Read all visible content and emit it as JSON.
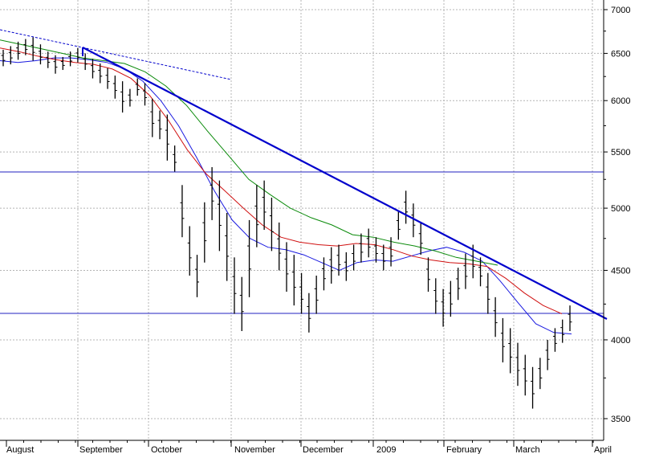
{
  "chart_data": {
    "type": "ohlc",
    "x_labels": [
      "August",
      "September",
      "October",
      "November",
      "December",
      "2009",
      "February",
      "March",
      "April"
    ],
    "y_ticks": [
      3500,
      4000,
      4500,
      5000,
      5500,
      6000,
      6500,
      7000
    ],
    "y_tick_labels": [
      "3500",
      "4000",
      "4500",
      "5000",
      "5500",
      "6000",
      "6500",
      "7000"
    ],
    "ylim": [
      3380,
      7050
    ],
    "y_scale": "log",
    "grid": true,
    "series": [
      {
        "kind": "price-bars",
        "color": "#000000",
        "values": [
          [
            6540,
            6360
          ],
          [
            6580,
            6380
          ],
          [
            6630,
            6430
          ],
          [
            6660,
            6480
          ],
          [
            6680,
            6420
          ],
          [
            6600,
            6380
          ],
          [
            6520,
            6340
          ],
          [
            6480,
            6280
          ],
          [
            6460,
            6320
          ],
          [
            6520,
            6360
          ],
          [
            6560,
            6400
          ],
          [
            6500,
            6320
          ],
          [
            6440,
            6230
          ],
          [
            6390,
            6180
          ],
          [
            6340,
            6120
          ],
          [
            6260,
            6020
          ],
          [
            6200,
            5880
          ],
          [
            6120,
            5940
          ],
          [
            6230,
            6050
          ],
          [
            6180,
            5950
          ],
          [
            6020,
            5640
          ],
          [
            5900,
            5620
          ],
          [
            5860,
            5420
          ],
          [
            5560,
            5320
          ],
          [
            5200,
            4760
          ],
          [
            4850,
            4460
          ],
          [
            4620,
            4300
          ],
          [
            5050,
            4560
          ],
          [
            5360,
            4900
          ],
          [
            5240,
            4650
          ],
          [
            4960,
            4420
          ],
          [
            4600,
            4180
          ],
          [
            4450,
            4060
          ],
          [
            4900,
            4300
          ],
          [
            5200,
            4680
          ],
          [
            5240,
            4820
          ],
          [
            5090,
            4650
          ],
          [
            4880,
            4500
          ],
          [
            4720,
            4340
          ],
          [
            4620,
            4240
          ],
          [
            4480,
            4180
          ],
          [
            4330,
            4050
          ],
          [
            4460,
            4180
          ],
          [
            4600,
            4350
          ],
          [
            4680,
            4400
          ],
          [
            4700,
            4460
          ],
          [
            4640,
            4420
          ],
          [
            4700,
            4500
          ],
          [
            4790,
            4560
          ],
          [
            4830,
            4600
          ],
          [
            4760,
            4560
          ],
          [
            4700,
            4500
          ],
          [
            4760,
            4530
          ],
          [
            4980,
            4740
          ],
          [
            5150,
            4870
          ],
          [
            5040,
            4760
          ],
          [
            4880,
            4620
          ],
          [
            4600,
            4340
          ],
          [
            4440,
            4180
          ],
          [
            4360,
            4090
          ],
          [
            4420,
            4160
          ],
          [
            4520,
            4280
          ],
          [
            4630,
            4360
          ],
          [
            4700,
            4440
          ],
          [
            4600,
            4380
          ],
          [
            4480,
            4180
          ],
          [
            4300,
            4020
          ],
          [
            4150,
            3850
          ],
          [
            4080,
            3780
          ],
          [
            3980,
            3700
          ],
          [
            3900,
            3640
          ],
          [
            3820,
            3560
          ],
          [
            3880,
            3680
          ],
          [
            4000,
            3800
          ],
          [
            4080,
            3920
          ],
          [
            4140,
            3980
          ],
          [
            4240,
            4060
          ]
        ]
      },
      {
        "name": "",
        "kind": "moving-average",
        "color": "#1a1ae0",
        "values": [
          6420,
          6400,
          6420,
          6450,
          6450,
          6430,
          6400,
          6330,
          6200,
          6000,
          5750,
          5450,
          5150,
          4900,
          4750,
          4680,
          4660,
          4620,
          4560,
          4500,
          4560,
          4580,
          4570,
          4610,
          4650,
          4680,
          4640,
          4570,
          4420,
          4260,
          4110,
          4050,
          4040
        ]
      },
      {
        "name": "",
        "kind": "moving-average",
        "color": "#d01010",
        "values": [
          6560,
          6520,
          6470,
          6430,
          6400,
          6380,
          6330,
          6230,
          6050,
          5800,
          5520,
          5300,
          5150,
          5000,
          4860,
          4760,
          4720,
          4700,
          4690,
          4710,
          4700,
          4660,
          4610,
          4580,
          4560,
          4550,
          4530,
          4440,
          4330,
          4240,
          4180
        ]
      },
      {
        "name": "",
        "kind": "moving-average",
        "color": "#0a8a0a",
        "values": [
          6650,
          6600,
          6550,
          6500,
          6450,
          6420,
          6390,
          6300,
          6150,
          5950,
          5700,
          5470,
          5250,
          5120,
          5000,
          4920,
          4860,
          4780,
          4760,
          4720,
          4690,
          4650,
          4600,
          4570,
          4540
        ]
      }
    ]
  }
}
